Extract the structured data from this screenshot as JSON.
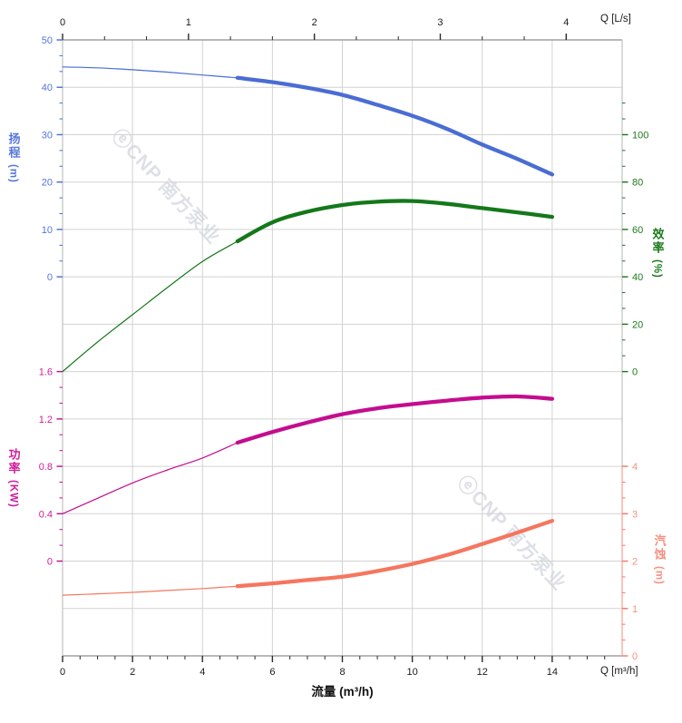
{
  "watermark": {
    "text": "ⓔCNP 南方泵业",
    "color": "#c3c8d3"
  },
  "chart_data": {
    "type": "line",
    "title": "",
    "grid": true,
    "x_axis_bottom": {
      "label": "流量 (m³/h)",
      "corner_label": "Q [m³/h]",
      "ticks": [
        0,
        2,
        4,
        6,
        8,
        10,
        12,
        14
      ],
      "minor_step": 0.5,
      "minor_max": 15.5,
      "plot_max": 16
    },
    "x_axis_top": {
      "corner_label": "Q [L/s]",
      "ticks": [
        0,
        1,
        2,
        3,
        4
      ],
      "minors_per_interval": 2,
      "m3h_per_unit": 3.6
    },
    "y_axes": {
      "head": {
        "title": "扬程",
        "unit": "(m)",
        "side": "left",
        "color": "#4a6cd4",
        "label_color": "#5576dc",
        "ticks": [
          0,
          10,
          20,
          30,
          40,
          50
        ],
        "range": [
          0,
          50
        ]
      },
      "power": {
        "title": "功率",
        "unit": "(KW)",
        "side": "left",
        "color": "#c40d8e",
        "label_color": "#d01d9a",
        "ticks": [
          0,
          0.4,
          0.8,
          1.2,
          1.6
        ],
        "range": [
          0,
          1.6
        ]
      },
      "efficiency": {
        "title": "效率",
        "unit": "(%)",
        "side": "right",
        "color": "#14781a",
        "label_color": "#1b7a1b",
        "ticks": [
          0,
          20,
          40,
          60,
          80,
          100
        ],
        "range": [
          0,
          100
        ]
      },
      "npsh": {
        "title": "汽蚀",
        "unit": "(m)",
        "side": "right",
        "color": "#f5765f",
        "label_color": "#f69080",
        "ticks": [
          0,
          1,
          2,
          3,
          4
        ],
        "range": [
          0,
          4
        ]
      }
    },
    "series": [
      {
        "id": "head",
        "name": "扬程",
        "axis": "head",
        "color": "#4a6cd4",
        "bold_from": 5,
        "x": [
          0,
          1,
          2,
          3,
          4,
          5,
          6,
          7,
          8,
          9,
          10,
          11,
          12,
          13,
          14
        ],
        "y": [
          44.3,
          44.1,
          43.7,
          43.2,
          42.6,
          42.0,
          41.1,
          39.9,
          38.4,
          36.3,
          34.0,
          31.2,
          27.9,
          24.9,
          21.6
        ]
      },
      {
        "id": "efficiency",
        "name": "效率",
        "axis": "efficiency",
        "color": "#14781a",
        "bold_from": 5,
        "x": [
          0,
          1,
          2,
          3,
          4,
          5,
          6,
          7,
          8,
          9,
          10,
          11,
          12,
          13,
          14
        ],
        "y": [
          0,
          12.5,
          24,
          35.5,
          46.5,
          55,
          63,
          67.5,
          70.3,
          71.7,
          72,
          70.8,
          69,
          67.2,
          65.3
        ]
      },
      {
        "id": "power",
        "name": "功率",
        "axis": "power",
        "color": "#c40d8e",
        "bold_from": 5,
        "x": [
          0,
          1,
          2,
          3,
          4,
          5,
          6,
          7,
          8,
          9,
          10,
          11,
          12,
          13,
          14
        ],
        "y": [
          0.4,
          0.53,
          0.66,
          0.77,
          0.87,
          1.0,
          1.09,
          1.17,
          1.24,
          1.29,
          1.325,
          1.355,
          1.38,
          1.39,
          1.37
        ]
      },
      {
        "id": "npsh",
        "name": "汽蚀",
        "axis": "npsh",
        "color": "#f5765f",
        "bold_from": 5,
        "x": [
          0,
          1,
          2,
          3,
          4,
          5,
          6,
          7,
          8,
          9,
          10,
          11,
          12,
          13,
          14
        ],
        "y": [
          1.28,
          1.31,
          1.34,
          1.38,
          1.42,
          1.47,
          1.53,
          1.6,
          1.67,
          1.79,
          1.94,
          2.13,
          2.36,
          2.6,
          2.85
        ]
      }
    ]
  }
}
